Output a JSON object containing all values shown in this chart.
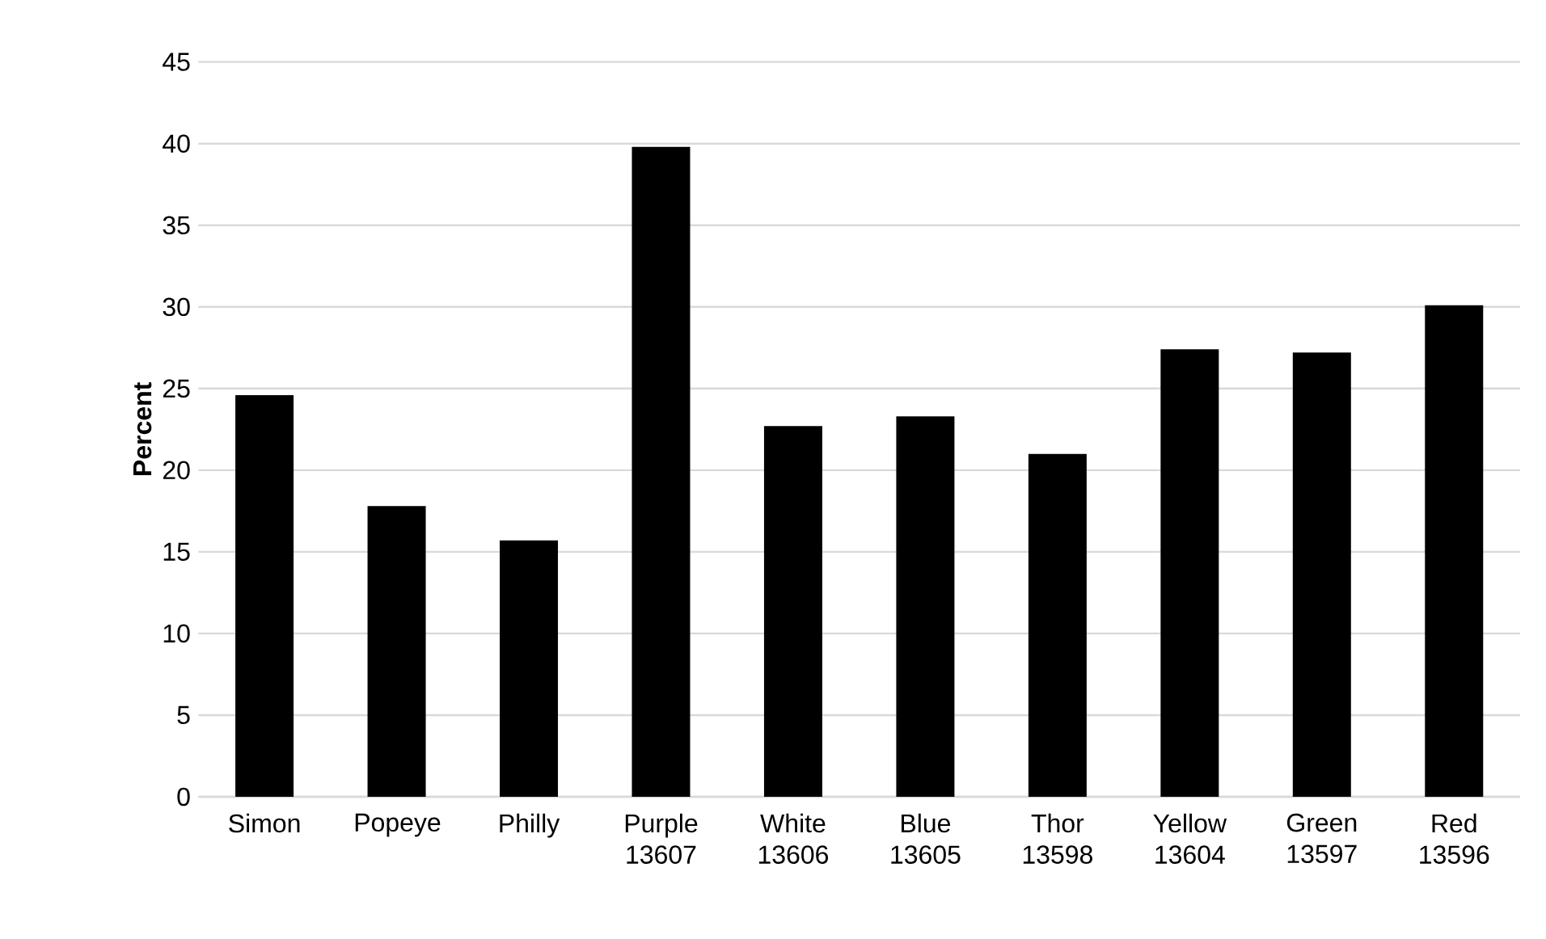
{
  "chart_data": {
    "type": "bar",
    "ylabel": "Percent",
    "categories": [
      "Simon",
      "Popeye",
      "Philly",
      "Purple 13607",
      "White 13606",
      "Blue 13605",
      "Thor 13598",
      "Yellow 13604",
      "Green 13597",
      "Red 13596"
    ],
    "values": [
      24.6,
      17.8,
      15.7,
      39.8,
      22.7,
      23.3,
      21.0,
      27.4,
      27.2,
      30.1
    ],
    "color": "#000000",
    "ylim": [
      0,
      45
    ],
    "yticks": [
      0,
      5,
      10,
      15,
      20,
      25,
      30,
      35,
      40,
      45
    ],
    "grid": "y"
  }
}
